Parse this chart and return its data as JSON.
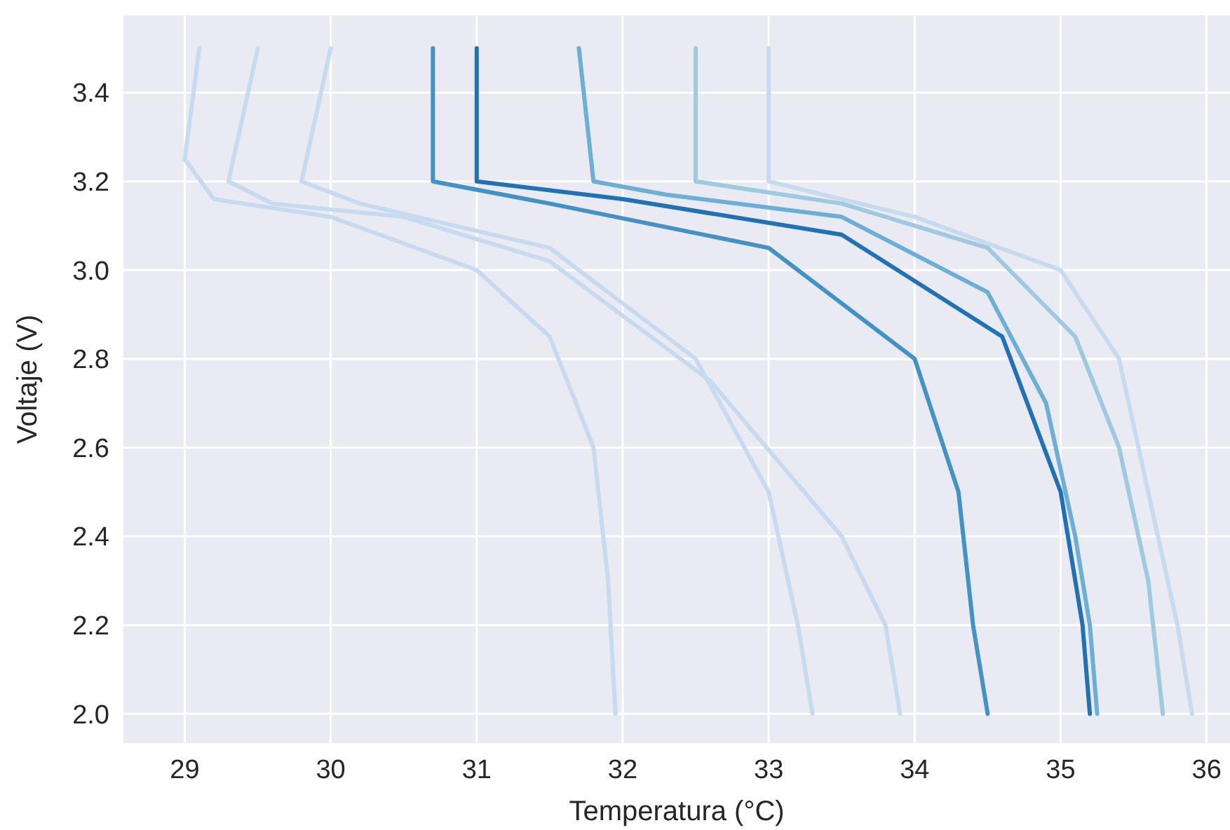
{
  "chart_data": {
    "type": "line",
    "xlabel": "Temperatura (°C)",
    "ylabel": "Voltaje (V)",
    "xlim": [
      28.58,
      36.16
    ],
    "ylim": [
      1.934,
      3.574
    ],
    "xticks": [
      29,
      30,
      31,
      32,
      33,
      34,
      35,
      36
    ],
    "yticks": [
      {
        "value": 2.0,
        "label": "2.0"
      },
      {
        "value": 2.2,
        "label": "2.2"
      },
      {
        "value": 2.4,
        "label": "2.4"
      },
      {
        "value": 2.6,
        "label": "2.6"
      },
      {
        "value": 2.8,
        "label": "2.8"
      },
      {
        "value": 3.0,
        "label": "3.0"
      },
      {
        "value": 3.2,
        "label": "3.2"
      },
      {
        "value": 3.4,
        "label": "3.4"
      }
    ],
    "grid": true,
    "marker": "none",
    "line_style": "solid",
    "series": [
      {
        "color": "#c6dbef",
        "x": [
          29.1,
          29.0,
          29.2,
          30.0,
          31.0,
          31.5,
          31.8,
          31.9,
          31.95
        ],
        "values": [
          3.5,
          3.25,
          3.16,
          3.12,
          3.0,
          2.85,
          2.6,
          2.3,
          2.0
        ]
      },
      {
        "color": "#c6dbef",
        "x": [
          29.5,
          29.3,
          29.6,
          30.5,
          31.5,
          32.6,
          33.5,
          33.8,
          33.9
        ],
        "values": [
          3.5,
          3.2,
          3.15,
          3.12,
          3.02,
          2.75,
          2.4,
          2.2,
          2.0
        ]
      },
      {
        "color": "#c6dbef",
        "x": [
          30.0,
          29.8,
          30.2,
          31.5,
          32.5,
          33.0,
          33.2,
          33.3
        ],
        "values": [
          3.5,
          3.2,
          3.15,
          3.05,
          2.8,
          2.5,
          2.2,
          2.0
        ]
      },
      {
        "color": "#4292c6",
        "x": [
          30.7,
          30.7,
          31.5,
          33.0,
          34.0,
          34.3,
          34.4,
          34.5
        ],
        "values": [
          3.5,
          3.2,
          3.15,
          3.05,
          2.8,
          2.5,
          2.2,
          2.0
        ]
      },
      {
        "color": "#2171b5",
        "x": [
          31.0,
          31.0,
          32.0,
          33.5,
          34.6,
          35.0,
          35.15,
          35.2
        ],
        "values": [
          3.5,
          3.2,
          3.16,
          3.08,
          2.85,
          2.5,
          2.2,
          2.0
        ]
      },
      {
        "color": "#6baed6",
        "x": [
          31.7,
          31.8,
          32.3,
          33.5,
          34.5,
          34.9,
          35.1,
          35.2,
          35.25
        ],
        "values": [
          3.5,
          3.2,
          3.17,
          3.12,
          2.95,
          2.7,
          2.4,
          2.2,
          2.0
        ]
      },
      {
        "color": "#9ecae1",
        "x": [
          32.5,
          32.5,
          33.5,
          34.5,
          35.1,
          35.4,
          35.6,
          35.7
        ],
        "values": [
          3.5,
          3.2,
          3.15,
          3.05,
          2.85,
          2.6,
          2.3,
          2.0
        ]
      },
      {
        "color": "#c6dbef",
        "x": [
          33.0,
          33.0,
          34.0,
          35.0,
          35.4,
          35.6,
          35.8,
          35.9
        ],
        "values": [
          3.5,
          3.2,
          3.12,
          3.0,
          2.8,
          2.5,
          2.2,
          2.0
        ]
      }
    ]
  }
}
